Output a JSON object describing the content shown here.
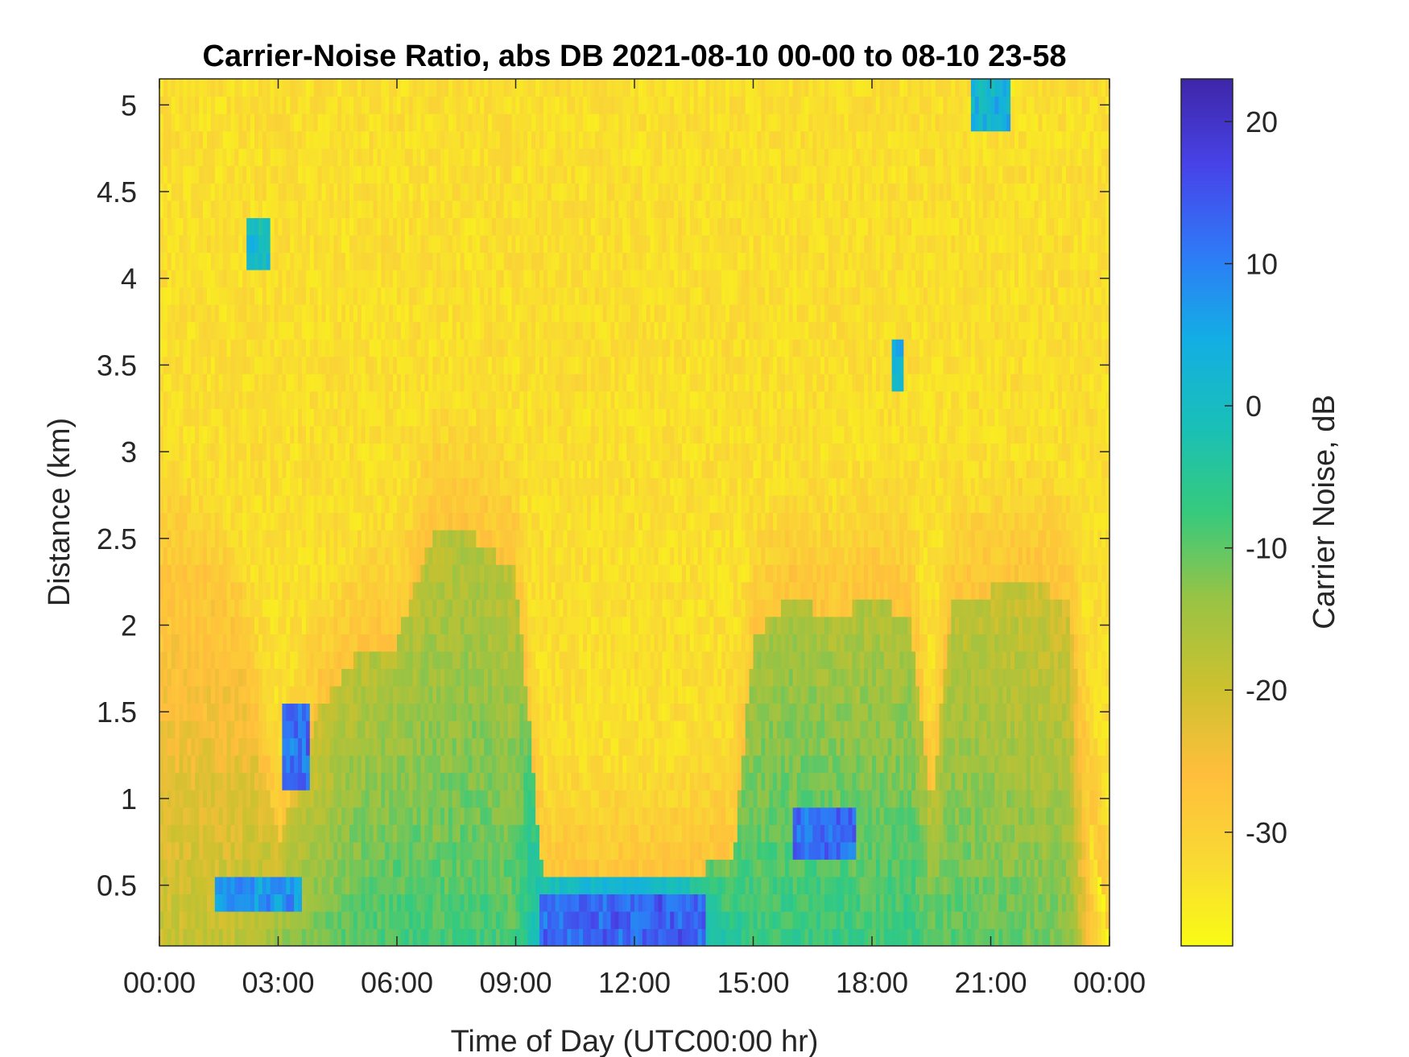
{
  "chart_data": {
    "type": "heatmap",
    "title": "Carrier-Noise Ratio, abs DB 2021-08-10 00-00 to 08-10 23-58",
    "xlabel": "Time of Day (UTC00:00 hr)",
    "ylabel": "Distance (km)",
    "colorbar_label": "Carrier Noise, dB",
    "x_range_hours": [
      0,
      24
    ],
    "y_range_km": [
      0.15,
      5.15
    ],
    "color_range_db": [
      -38,
      23
    ],
    "x_ticks": [
      {
        "value": 0,
        "label": "00:00"
      },
      {
        "value": 3,
        "label": "03:00"
      },
      {
        "value": 6,
        "label": "06:00"
      },
      {
        "value": 9,
        "label": "09:00"
      },
      {
        "value": 12,
        "label": "12:00"
      },
      {
        "value": 15,
        "label": "15:00"
      },
      {
        "value": 18,
        "label": "18:00"
      },
      {
        "value": 21,
        "label": "21:00"
      },
      {
        "value": 24,
        "label": "00:00"
      }
    ],
    "y_ticks": [
      {
        "value": 0.5,
        "label": "0.5"
      },
      {
        "value": 1,
        "label": "1"
      },
      {
        "value": 1.5,
        "label": "1.5"
      },
      {
        "value": 2,
        "label": "2"
      },
      {
        "value": 2.5,
        "label": "2.5"
      },
      {
        "value": 3,
        "label": "3"
      },
      {
        "value": 3.5,
        "label": "3.5"
      },
      {
        "value": 4,
        "label": "4"
      },
      {
        "value": 4.5,
        "label": "4.5"
      },
      {
        "value": 5,
        "label": "5"
      }
    ],
    "colorbar_ticks": [
      {
        "value": 20,
        "label": "20"
      },
      {
        "value": 10,
        "label": "10"
      },
      {
        "value": 0,
        "label": "0"
      },
      {
        "value": -10,
        "label": "-10"
      },
      {
        "value": -20,
        "label": "-20"
      },
      {
        "value": -30,
        "label": "-30"
      }
    ],
    "colormap": [
      "#3e26a8",
      "#4743e8",
      "#2f79f7",
      "#13aee4",
      "#19bfb8",
      "#36ca7d",
      "#99c344",
      "#cbc12f",
      "#ffbe3c",
      "#f9d834",
      "#f9fb15"
    ],
    "background_db": -33,
    "boundary_layer": {
      "x_hours": [
        0,
        1,
        2,
        3,
        4,
        5,
        6,
        7,
        8,
        9,
        9.7,
        10.2,
        11,
        12,
        13,
        13.8,
        14.5,
        15,
        16,
        17,
        18,
        19,
        19.5,
        20,
        21,
        22,
        23,
        23.5,
        24
      ],
      "top_km": [
        2.2,
        2.2,
        1.9,
        0.75,
        1.5,
        1.85,
        1.9,
        2.6,
        2.5,
        2.3,
        0.5,
        0.5,
        0.5,
        0.5,
        0.5,
        0.6,
        0.65,
        1.9,
        2.2,
        2.0,
        2.2,
        2.0,
        0.9,
        2.1,
        2.2,
        2.3,
        2.1,
        0.9,
        0.2
      ],
      "surface_db": [
        -14,
        -14,
        -13,
        -8,
        -6,
        -4,
        -3,
        -4,
        -3,
        -4,
        10,
        14,
        16,
        16,
        14,
        6,
        2,
        -2,
        -2,
        -2,
        -3,
        -2,
        -4,
        -4,
        -5,
        -6,
        -7,
        -20,
        -25
      ]
    },
    "strong_returns": [
      {
        "x_hours": [
          9.6,
          13.8
        ],
        "y_km": [
          0.15,
          0.4
        ],
        "db": 16
      },
      {
        "x_hours": [
          16.0,
          17.6
        ],
        "y_km": [
          0.7,
          0.95
        ],
        "db": 15
      },
      {
        "x_hours": [
          3.1,
          3.8
        ],
        "y_km": [
          1.05,
          1.5
        ],
        "db": 15
      },
      {
        "x_hours": [
          1.4,
          3.6
        ],
        "y_km": [
          0.35,
          0.55
        ],
        "db": 10
      },
      {
        "x_hours": [
          20.5,
          21.5
        ],
        "y_km": [
          4.9,
          5.15
        ],
        "db": 6
      },
      {
        "x_hours": [
          2.2,
          2.8
        ],
        "y_km": [
          4.1,
          4.35
        ],
        "db": 4
      },
      {
        "x_hours": [
          18.5,
          18.8
        ],
        "y_km": [
          3.4,
          3.65
        ],
        "db": 6
      }
    ]
  }
}
